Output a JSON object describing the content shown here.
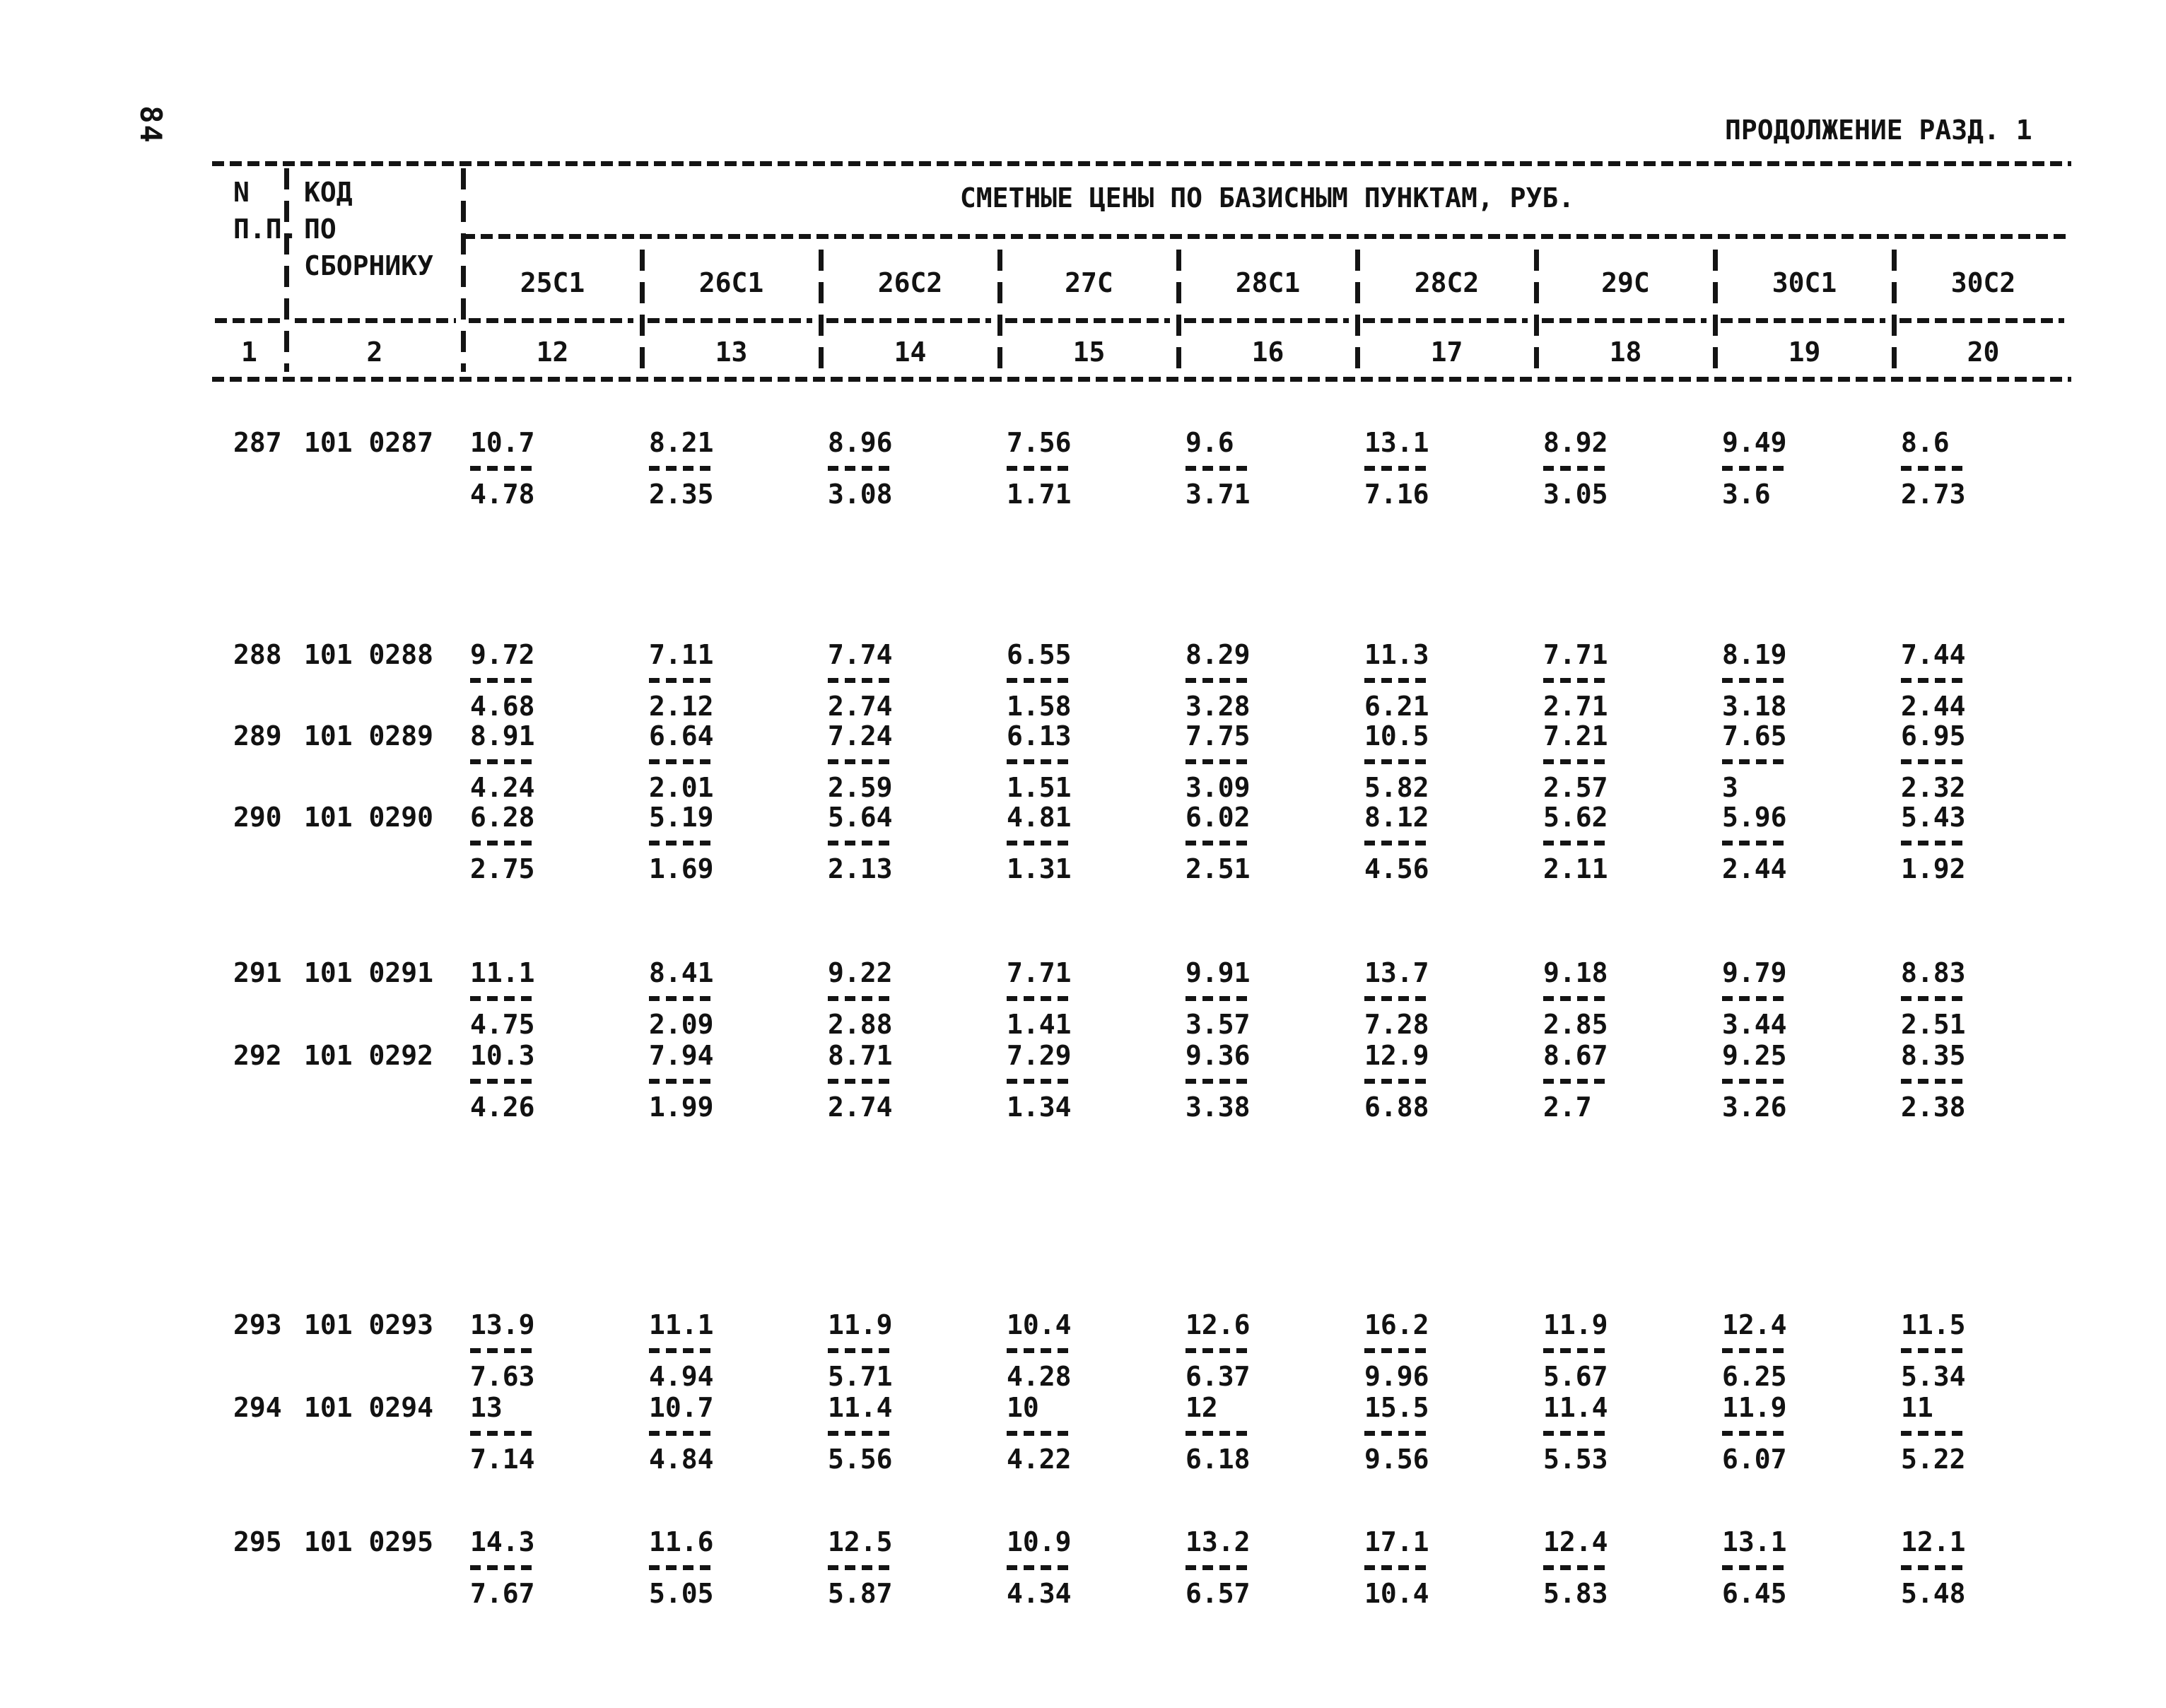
{
  "page": {
    "number": "84",
    "header_right": "ПРОДОЛЖЕНИЕ РАЗД. 1"
  },
  "table": {
    "col_npp_header": "N\nП.П.",
    "col_code_header": "КОД\nПО\nСБОРНИКУ",
    "prices_header": "СМЕТНЫЕ ЦЕНЫ ПО БАЗИСНЫМ ПУНКТАМ, РУБ.",
    "price_columns": [
      "25С1",
      "26С1",
      "26С2",
      "27С",
      "28С1",
      "28С2",
      "29С",
      "30С1",
      "30С2"
    ],
    "column_numbers": [
      "1",
      "2",
      "12",
      "13",
      "14",
      "15",
      "16",
      "17",
      "18",
      "19",
      "20"
    ],
    "rows": [
      {
        "num": "287",
        "code": "101 0287",
        "values": [
          {
            "top": "10.7",
            "bot": "4.78"
          },
          {
            "top": "8.21",
            "bot": "2.35"
          },
          {
            "top": "8.96",
            "bot": "3.08"
          },
          {
            "top": "7.56",
            "bot": "1.71"
          },
          {
            "top": "9.6",
            "bot": "3.71"
          },
          {
            "top": "13.1",
            "bot": "7.16"
          },
          {
            "top": "8.92",
            "bot": "3.05"
          },
          {
            "top": "9.49",
            "bot": "3.6"
          },
          {
            "top": "8.6",
            "bot": "2.73"
          }
        ]
      },
      {
        "num": "288",
        "code": "101 0288",
        "values": [
          {
            "top": "9.72",
            "bot": "4.68"
          },
          {
            "top": "7.11",
            "bot": "2.12"
          },
          {
            "top": "7.74",
            "bot": "2.74"
          },
          {
            "top": "6.55",
            "bot": "1.58"
          },
          {
            "top": "8.29",
            "bot": "3.28"
          },
          {
            "top": "11.3",
            "bot": "6.21"
          },
          {
            "top": "7.71",
            "bot": "2.71"
          },
          {
            "top": "8.19",
            "bot": "3.18"
          },
          {
            "top": "7.44",
            "bot": "2.44"
          }
        ]
      },
      {
        "num": "289",
        "code": "101 0289",
        "values": [
          {
            "top": "8.91",
            "bot": "4.24"
          },
          {
            "top": "6.64",
            "bot": "2.01"
          },
          {
            "top": "7.24",
            "bot": "2.59"
          },
          {
            "top": "6.13",
            "bot": "1.51"
          },
          {
            "top": "7.75",
            "bot": "3.09"
          },
          {
            "top": "10.5",
            "bot": "5.82"
          },
          {
            "top": "7.21",
            "bot": "2.57"
          },
          {
            "top": "7.65",
            "bot": "3"
          },
          {
            "top": "6.95",
            "bot": "2.32"
          }
        ]
      },
      {
        "num": "290",
        "code": "101 0290",
        "values": [
          {
            "top": "6.28",
            "bot": "2.75"
          },
          {
            "top": "5.19",
            "bot": "1.69"
          },
          {
            "top": "5.64",
            "bot": "2.13"
          },
          {
            "top": "4.81",
            "bot": "1.31"
          },
          {
            "top": "6.02",
            "bot": "2.51"
          },
          {
            "top": "8.12",
            "bot": "4.56"
          },
          {
            "top": "5.62",
            "bot": "2.11"
          },
          {
            "top": "5.96",
            "bot": "2.44"
          },
          {
            "top": "5.43",
            "bot": "1.92"
          }
        ]
      },
      {
        "num": "291",
        "code": "101 0291",
        "values": [
          {
            "top": "11.1",
            "bot": "4.75"
          },
          {
            "top": "8.41",
            "bot": "2.09"
          },
          {
            "top": "9.22",
            "bot": "2.88"
          },
          {
            "top": "7.71",
            "bot": "1.41"
          },
          {
            "top": "9.91",
            "bot": "3.57"
          },
          {
            "top": "13.7",
            "bot": "7.28"
          },
          {
            "top": "9.18",
            "bot": "2.85"
          },
          {
            "top": "9.79",
            "bot": "3.44"
          },
          {
            "top": "8.83",
            "bot": "2.51"
          }
        ]
      },
      {
        "num": "292",
        "code": "101 0292",
        "values": [
          {
            "top": "10.3",
            "bot": "4.26"
          },
          {
            "top": "7.94",
            "bot": "1.99"
          },
          {
            "top": "8.71",
            "bot": "2.74"
          },
          {
            "top": "7.29",
            "bot": "1.34"
          },
          {
            "top": "9.36",
            "bot": "3.38"
          },
          {
            "top": "12.9",
            "bot": "6.88"
          },
          {
            "top": "8.67",
            "bot": "2.7"
          },
          {
            "top": "9.25",
            "bot": "3.26"
          },
          {
            "top": "8.35",
            "bot": "2.38"
          }
        ]
      },
      {
        "num": "293",
        "code": "101 0293",
        "values": [
          {
            "top": "13.9",
            "bot": "7.63"
          },
          {
            "top": "11.1",
            "bot": "4.94"
          },
          {
            "top": "11.9",
            "bot": "5.71"
          },
          {
            "top": "10.4",
            "bot": "4.28"
          },
          {
            "top": "12.6",
            "bot": "6.37"
          },
          {
            "top": "16.2",
            "bot": "9.96"
          },
          {
            "top": "11.9",
            "bot": "5.67"
          },
          {
            "top": "12.4",
            "bot": "6.25"
          },
          {
            "top": "11.5",
            "bot": "5.34"
          }
        ]
      },
      {
        "num": "294",
        "code": "101 0294",
        "values": [
          {
            "top": "13",
            "bot": "7.14"
          },
          {
            "top": "10.7",
            "bot": "4.84"
          },
          {
            "top": "11.4",
            "bot": "5.56"
          },
          {
            "top": "10",
            "bot": "4.22"
          },
          {
            "top": "12",
            "bot": "6.18"
          },
          {
            "top": "15.5",
            "bot": "9.56"
          },
          {
            "top": "11.4",
            "bot": "5.53"
          },
          {
            "top": "11.9",
            "bot": "6.07"
          },
          {
            "top": "11",
            "bot": "5.22"
          }
        ]
      },
      {
        "num": "295",
        "code": "101 0295",
        "values": [
          {
            "top": "14.3",
            "bot": "7.67"
          },
          {
            "top": "11.6",
            "bot": "5.05"
          },
          {
            "top": "12.5",
            "bot": "5.87"
          },
          {
            "top": "10.9",
            "bot": "4.34"
          },
          {
            "top": "13.2",
            "bot": "6.57"
          },
          {
            "top": "17.1",
            "bot": "10.4"
          },
          {
            "top": "12.4",
            "bot": "5.83"
          },
          {
            "top": "13.1",
            "bot": "6.45"
          },
          {
            "top": "12.1",
            "bot": "5.48"
          }
        ]
      }
    ]
  }
}
